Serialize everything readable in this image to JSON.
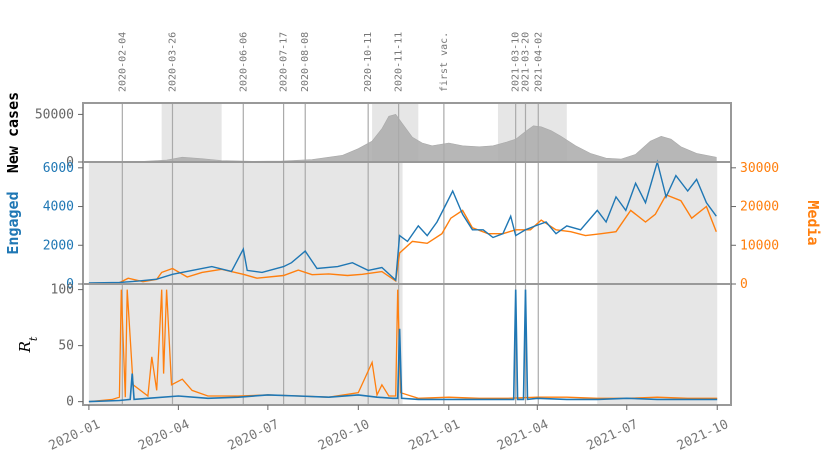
{
  "chart_data": [
    {
      "type": "area",
      "panel": "top",
      "ylabel": "New cases",
      "yticks": [
        0,
        50000
      ],
      "ylim": [
        0,
        62000
      ],
      "series": [
        {
          "color": "#aaaaaa",
          "x": [
            "2020-01-01",
            "2020-02-15",
            "2020-03-20",
            "2020-04-05",
            "2020-04-25",
            "2020-05-15",
            "2020-06-15",
            "2020-07-15",
            "2020-08-15",
            "2020-09-15",
            "2020-10-01",
            "2020-10-15",
            "2020-10-25",
            "2020-11-01",
            "2020-11-08",
            "2020-11-15",
            "2020-11-25",
            "2020-12-05",
            "2020-12-15",
            "2021-01-01",
            "2021-01-15",
            "2021-02-01",
            "2021-02-15",
            "2021-03-01",
            "2021-03-10",
            "2021-03-20",
            "2021-03-28",
            "2021-04-05",
            "2021-04-15",
            "2021-04-25",
            "2021-05-10",
            "2021-05-25",
            "2021-06-10",
            "2021-06-25",
            "2021-07-10",
            "2021-07-25",
            "2021-08-05",
            "2021-08-15",
            "2021-08-25",
            "2021-09-10",
            "2021-09-30"
          ],
          "values": [
            0,
            100,
            2000,
            5000,
            3500,
            1500,
            700,
            900,
            2500,
            7000,
            14000,
            22000,
            35000,
            48000,
            50000,
            40000,
            26000,
            20000,
            17000,
            20000,
            17000,
            16000,
            17000,
            21000,
            24000,
            32000,
            38000,
            37000,
            33000,
            27000,
            17000,
            9000,
            4000,
            3000,
            8000,
            22000,
            27000,
            24000,
            16000,
            9000,
            5000
          ]
        }
      ],
      "shaded": [
        [
          "2020-03-15",
          "2020-05-15"
        ],
        [
          "2020-10-15",
          "2020-12-01"
        ],
        [
          "2021-02-20",
          "2021-05-01"
        ]
      ]
    },
    {
      "type": "line",
      "panel": "middle",
      "ylabel": "Engaged",
      "ylabel_right": "Media",
      "yticks": [
        0,
        2000,
        4000,
        6000
      ],
      "yticks_right": [
        0,
        10000,
        20000,
        30000
      ],
      "ylim": [
        0,
        6300
      ],
      "ylim_right": [
        0,
        31500
      ],
      "shaded": [
        [
          "2020-01-01",
          "2020-11-15"
        ],
        [
          "2021-06-01",
          "2021-10-01"
        ]
      ],
      "series": [
        {
          "name": "Engaged",
          "color": "#1f77b4",
          "x": [
            "2020-01-01",
            "2020-02-01",
            "2020-02-20",
            "2020-03-10",
            "2020-03-26",
            "2020-04-15",
            "2020-05-05",
            "2020-05-25",
            "2020-06-06",
            "2020-06-10",
            "2020-06-25",
            "2020-07-17",
            "2020-07-25",
            "2020-08-08",
            "2020-08-20",
            "2020-09-10",
            "2020-09-25",
            "2020-10-11",
            "2020-10-25",
            "2020-11-08",
            "2020-11-12",
            "2020-11-20",
            "2020-12-01",
            "2020-12-10",
            "2020-12-20",
            "2020-12-28",
            "2021-01-05",
            "2021-01-15",
            "2021-01-25",
            "2021-02-05",
            "2021-02-15",
            "2021-02-25",
            "2021-03-05",
            "2021-03-10",
            "2021-03-20",
            "2021-03-30",
            "2021-04-10",
            "2021-04-20",
            "2021-05-01",
            "2021-05-15",
            "2021-06-01",
            "2021-06-10",
            "2021-06-20",
            "2021-06-30",
            "2021-07-10",
            "2021-07-20",
            "2021-08-01",
            "2021-08-10",
            "2021-08-20",
            "2021-09-01",
            "2021-09-10",
            "2021-09-20",
            "2021-09-30"
          ],
          "values": [
            50,
            80,
            150,
            250,
            500,
            700,
            900,
            650,
            1800,
            700,
            600,
            900,
            1100,
            1700,
            800,
            900,
            1100,
            700,
            850,
            200,
            2500,
            2200,
            3000,
            2500,
            3200,
            4000,
            4800,
            3600,
            2800,
            2800,
            2400,
            2600,
            3500,
            2500,
            2800,
            3000,
            3200,
            2600,
            3000,
            2800,
            3800,
            3200,
            4500,
            3800,
            5200,
            4200,
            6300,
            4500,
            5600,
            4800,
            5400,
            4200,
            3500
          ]
        },
        {
          "name": "Media",
          "color": "#ff7f0e",
          "x": [
            "2020-01-01",
            "2020-02-01",
            "2020-02-10",
            "2020-02-25",
            "2020-03-10",
            "2020-03-15",
            "2020-03-26",
            "2020-04-10",
            "2020-04-25",
            "2020-05-15",
            "2020-06-06",
            "2020-06-20",
            "2020-07-17",
            "2020-08-01",
            "2020-08-15",
            "2020-09-01",
            "2020-09-20",
            "2020-10-05",
            "2020-10-25",
            "2020-11-08",
            "2020-11-12",
            "2020-11-25",
            "2020-12-10",
            "2020-12-25",
            "2021-01-03",
            "2021-01-15",
            "2021-01-25",
            "2021-02-10",
            "2021-02-25",
            "2021-03-10",
            "2021-03-25",
            "2021-04-05",
            "2021-04-20",
            "2021-05-05",
            "2021-05-20",
            "2021-06-05",
            "2021-06-20",
            "2021-07-05",
            "2021-07-20",
            "2021-07-30",
            "2021-08-10",
            "2021-08-25",
            "2021-09-05",
            "2021-09-20",
            "2021-09-30"
          ],
          "values": [
            200,
            300,
            1500,
            600,
            1200,
            3000,
            4000,
            1800,
            3000,
            3800,
            2500,
            1500,
            2200,
            3600,
            2400,
            2600,
            2200,
            2500,
            3200,
            800,
            8000,
            11000,
            10500,
            13000,
            17000,
            19000,
            14500,
            13000,
            13000,
            14000,
            14000,
            16500,
            14000,
            13500,
            12500,
            13000,
            13500,
            19000,
            16000,
            18000,
            23000,
            21500,
            17000,
            20000,
            13500
          ]
        }
      ]
    },
    {
      "type": "line",
      "panel": "bottom",
      "ylabel": "Rt",
      "yticks": [
        0,
        50,
        100
      ],
      "ylim": [
        -3,
        105
      ],
      "shaded": [
        [
          "2020-01-01",
          "2020-11-15"
        ],
        [
          "2021-06-01",
          "2021-10-01"
        ]
      ],
      "series": [
        {
          "name": "Engaged",
          "color": "#1f77b4",
          "x": [
            "2020-01-01",
            "2020-02-01",
            "2020-02-12",
            "2020-02-14",
            "2020-02-16",
            "2020-03-01",
            "2020-04-01",
            "2020-05-01",
            "2020-06-01",
            "2020-07-01",
            "2020-08-01",
            "2020-09-01",
            "2020-10-01",
            "2020-10-20",
            "2020-11-05",
            "2020-11-10",
            "2020-11-12",
            "2020-11-14",
            "2020-12-01",
            "2021-01-01",
            "2021-02-01",
            "2021-03-08",
            "2021-03-10",
            "2021-03-12",
            "2021-03-18",
            "2021-03-20",
            "2021-03-22",
            "2021-04-01",
            "2021-05-01",
            "2021-06-01",
            "2021-07-01",
            "2021-08-01",
            "2021-09-01",
            "2021-10-01"
          ],
          "values": [
            0,
            1,
            2,
            25,
            2,
            3,
            5,
            3,
            4,
            6,
            5,
            4,
            6,
            4,
            3,
            3,
            65,
            3,
            2,
            2,
            2,
            2,
            100,
            2,
            2,
            100,
            2,
            3,
            2,
            2,
            3,
            2,
            2,
            2
          ]
        },
        {
          "name": "Media",
          "color": "#ff7f0e",
          "x": [
            "2020-01-01",
            "2020-01-25",
            "2020-02-01",
            "2020-02-03",
            "2020-02-07",
            "2020-02-09",
            "2020-02-15",
            "2020-03-01",
            "2020-03-05",
            "2020-03-10",
            "2020-03-15",
            "2020-03-17",
            "2020-03-20",
            "2020-03-25",
            "2020-04-05",
            "2020-04-15",
            "2020-05-01",
            "2020-06-01",
            "2020-07-01",
            "2020-08-01",
            "2020-09-01",
            "2020-10-01",
            "2020-10-15",
            "2020-10-20",
            "2020-10-25",
            "2020-11-01",
            "2020-11-08",
            "2020-11-10",
            "2020-11-13",
            "2020-12-01",
            "2021-01-01",
            "2021-02-01",
            "2021-03-01",
            "2021-04-01",
            "2021-05-01",
            "2021-06-01",
            "2021-07-01",
            "2021-08-01",
            "2021-09-01",
            "2021-10-01"
          ],
          "values": [
            0,
            2,
            4,
            100,
            4,
            100,
            15,
            5,
            40,
            10,
            100,
            25,
            100,
            15,
            20,
            10,
            5,
            5,
            6,
            5,
            4,
            8,
            35,
            6,
            15,
            5,
            5,
            100,
            8,
            3,
            4,
            3,
            3,
            4,
            4,
            3,
            3,
            4,
            3,
            3
          ]
        }
      ]
    }
  ],
  "events": {
    "labels": [
      "2020-02-04",
      "2020-03-26",
      "2020-06-06",
      "2020-07-17",
      "2020-08-08",
      "2020-10-11",
      "2020-11-11",
      "first vac.",
      "2021-03-10",
      "2021-03-20",
      "2021-04-02"
    ],
    "dates": [
      "2020-02-04",
      "2020-03-26",
      "2020-06-06",
      "2020-07-17",
      "2020-08-08",
      "2020-10-11",
      "2020-11-11",
      "2020-12-27",
      "2021-03-10",
      "2021-03-20",
      "2021-04-02"
    ]
  },
  "xaxis": {
    "range": [
      "2019-12-26",
      "2021-10-15"
    ],
    "ticks": [
      "2020-01-01",
      "2020-04-01",
      "2020-07-01",
      "2020-10-01",
      "2021-01-01",
      "2021-04-01",
      "2021-07-01",
      "2021-10-01"
    ],
    "tick_labels": [
      "2020-01",
      "2020-04",
      "2020-07",
      "2020-10",
      "2021-01",
      "2021-04",
      "2021-07",
      "2021-10"
    ]
  },
  "colors": {
    "engaged": "#1f77b4",
    "media": "#ff7f0e",
    "cases": "#aaaaaa",
    "shade": "#e6e6e6",
    "frame": "#999999",
    "tick": "#666666"
  }
}
